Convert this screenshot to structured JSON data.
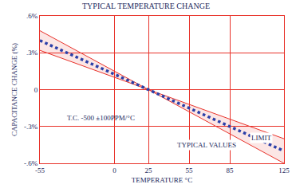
{
  "chart_data": {
    "type": "line",
    "title": "TYPICAL TEMPERATURE CHANGE",
    "x_label": "TEMPERATURE °C",
    "y_label": "CAPACITANCE CHANGE (%)",
    "x": [
      -55,
      25,
      125
    ],
    "series": [
      {
        "color": "#e8322a",
        "line_style": "solid",
        "values": [
          0.48,
          0,
          -0.6
        ]
      },
      {
        "color": "#e8322a",
        "line_style": "solid",
        "values": [
          0.32,
          0,
          -0.4
        ]
      },
      {
        "color": "#2b3fa8",
        "line_style": "dotted",
        "values": [
          0.4,
          0,
          -0.5
        ]
      }
    ],
    "annotations": [
      "T.C. -500 ±100PPM/°C",
      "TYPICAL VALUES",
      "LIMIT"
    ],
    "xlim": [
      -55,
      125
    ],
    "xticks": [
      -55,
      0,
      25,
      55,
      85,
      125
    ],
    "ylim": [
      -0.6,
      0.6
    ],
    "yticks": [
      {
        "value": -0.6,
        "label": "-.6%"
      },
      {
        "value": -0.3,
        "label": "-.3%"
      },
      0,
      {
        "value": 0.3,
        "label": ".3%"
      },
      {
        "value": 0.6,
        "label": ".6%"
      }
    ],
    "grid": true
  }
}
